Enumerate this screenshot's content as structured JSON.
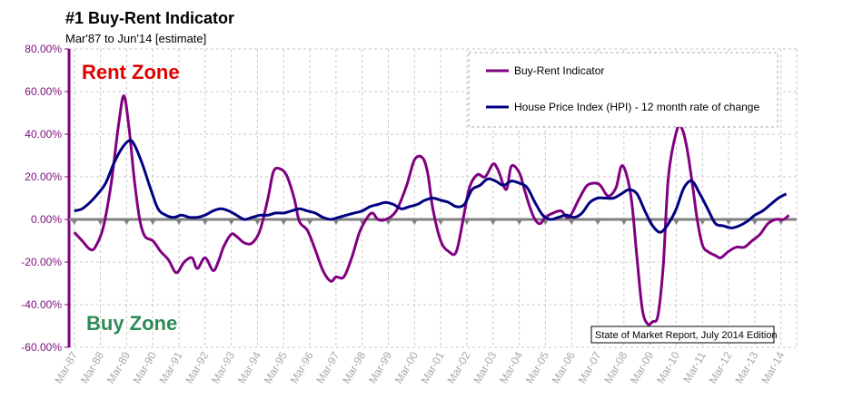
{
  "chart_data": {
    "type": "line",
    "title": "#1 Buy-Rent Indicator",
    "subtitle": "Mar'87 to Jun'14 [estimate]",
    "xlabel": "",
    "ylabel": "",
    "ylim": [
      -60,
      80
    ],
    "y_ticks": [
      "80.00%",
      "60.00%",
      "40.00%",
      "20.00%",
      "0.00%",
      "-20.00%",
      "-40.00%",
      "-60.00%"
    ],
    "x_ticks": [
      "Mar-87",
      "Mar-88",
      "Mar-89",
      "Mar-90",
      "Mar-91",
      "Mar-92",
      "Mar-93",
      "Mar-94",
      "Mar-95",
      "Mar-96",
      "Mar-97",
      "Mar-98",
      "Mar-99",
      "Mar-00",
      "Mar-01",
      "Mar-02",
      "Mar-03",
      "Mar-04",
      "Mar-05",
      "Mar-06",
      "Mar-07",
      "Mar-08",
      "Mar-09",
      "Mar-10",
      "Mar-11",
      "Mar-12",
      "Mar-13",
      "Mar-14"
    ],
    "grid": true,
    "legend": "top-right",
    "annotations": {
      "rent_zone": "Rent Zone",
      "buy_zone": "Buy Zone",
      "credit": "State of Market Report, July 2014 Edition"
    },
    "series": [
      {
        "name": "Buy-Rent Indicator",
        "color": "#800080",
        "x": [
          1987.2,
          1987.5,
          1987.8,
          1988.0,
          1988.3,
          1988.6,
          1988.9,
          1989.1,
          1989.3,
          1989.5,
          1989.7,
          1989.9,
          1990.2,
          1990.5,
          1990.8,
          1991.1,
          1991.4,
          1991.7,
          1991.9,
          1992.2,
          1992.5,
          1992.7,
          1992.9,
          1993.2,
          1993.4,
          1993.7,
          1994.0,
          1994.3,
          1994.6,
          1994.8,
          1995.0,
          1995.3,
          1995.6,
          1995.8,
          1996.1,
          1996.4,
          1996.7,
          1997.0,
          1997.2,
          1997.5,
          1997.8,
          1998.1,
          1998.4,
          1998.6,
          1998.8,
          1999.1,
          1999.5,
          1999.9,
          2000.2,
          2000.5,
          2000.7,
          2000.9,
          2001.2,
          2001.5,
          2001.8,
          2002.1,
          2002.3,
          2002.6,
          2002.9,
          2003.2,
          2003.4,
          2003.7,
          2003.9,
          2004.2,
          2004.4,
          2004.6,
          2004.8,
          2005.0,
          2005.2,
          2005.5,
          2005.8,
          2006.1,
          2006.5,
          2006.8,
          2007.1,
          2007.3,
          2007.6,
          2007.9,
          2008.1,
          2008.3,
          2008.5,
          2008.7,
          2008.9,
          2009.1,
          2009.3,
          2009.5,
          2009.7,
          2009.9,
          2010.2,
          2010.4,
          2010.6,
          2010.8,
          2011.0,
          2011.2,
          2011.4,
          2011.7,
          2011.9,
          2012.2,
          2012.5,
          2012.8,
          2013.1,
          2013.4,
          2013.7,
          2014.0,
          2014.3,
          2014.5
        ],
        "values": [
          -6,
          -10,
          -14,
          -13,
          -4,
          16,
          45,
          58,
          42,
          18,
          0,
          -8,
          -10,
          -15,
          -19,
          -25,
          -20,
          -18,
          -23,
          -18,
          -24,
          -20,
          -13,
          -7,
          -8,
          -11,
          -11,
          -5,
          10,
          22,
          24,
          21,
          10,
          -1,
          -5,
          -14,
          -24,
          -29,
          -27,
          -27,
          -18,
          -6,
          1,
          3,
          0,
          0,
          4,
          16,
          28,
          29,
          22,
          5,
          -10,
          -15,
          -15,
          3,
          15,
          21,
          20,
          26,
          23,
          14,
          25,
          22,
          14,
          6,
          0,
          -2,
          1,
          3,
          4,
          1,
          10,
          16,
          17,
          16,
          11,
          15,
          25,
          21,
          8,
          -18,
          -42,
          -49,
          -48,
          -45,
          -22,
          20,
          41,
          43,
          34,
          18,
          0,
          -12,
          -15,
          -17,
          -18,
          -15,
          -13,
          -13,
          -10,
          -7,
          -2,
          0,
          0,
          2
        ]
      },
      {
        "name": "House Price Index (HPI) - 12 month rate of change",
        "color": "#000080",
        "x": [
          1987.2,
          1987.5,
          1987.8,
          1988.1,
          1988.4,
          1988.7,
          1989.0,
          1989.3,
          1989.5,
          1989.8,
          1990.1,
          1990.4,
          1990.7,
          1991.0,
          1991.3,
          1991.6,
          1991.9,
          1992.2,
          1992.5,
          1992.8,
          1993.1,
          1993.4,
          1993.7,
          1994.0,
          1994.3,
          1994.6,
          1994.9,
          1995.2,
          1995.5,
          1995.8,
          1996.1,
          1996.4,
          1996.7,
          1997.0,
          1997.3,
          1997.6,
          1997.9,
          1998.2,
          1998.5,
          1998.8,
          1999.1,
          1999.4,
          1999.7,
          2000.0,
          2000.3,
          2000.6,
          2000.9,
          2001.2,
          2001.5,
          2001.8,
          2002.1,
          2002.4,
          2002.7,
          2003.0,
          2003.3,
          2003.6,
          2003.9,
          2004.2,
          2004.5,
          2004.8,
          2005.1,
          2005.4,
          2005.7,
          2006.0,
          2006.3,
          2006.6,
          2006.9,
          2007.2,
          2007.5,
          2007.8,
          2008.1,
          2008.4,
          2008.7,
          2009.0,
          2009.3,
          2009.6,
          2009.9,
          2010.2,
          2010.5,
          2010.8,
          2011.1,
          2011.4,
          2011.7,
          2012.0,
          2012.3,
          2012.6,
          2012.9,
          2013.2,
          2013.5,
          2013.8,
          2014.1,
          2014.4
        ],
        "values": [
          4,
          5,
          8,
          12,
          17,
          26,
          33,
          37,
          35,
          26,
          15,
          5,
          2,
          1,
          2,
          1,
          1,
          2,
          4,
          5,
          4,
          2,
          0,
          1,
          2,
          2,
          3,
          3,
          4,
          5,
          4,
          3,
          1,
          0,
          1,
          2,
          3,
          4,
          6,
          7,
          8,
          7,
          5,
          6,
          7,
          9,
          10,
          9,
          8,
          6,
          7,
          14,
          16,
          19,
          18,
          16,
          18,
          17,
          15,
          8,
          2,
          0,
          1,
          2,
          1,
          3,
          8,
          10,
          10,
          10,
          12,
          14,
          12,
          4,
          -3,
          -6,
          -2,
          5,
          15,
          18,
          12,
          5,
          -2,
          -3,
          -4,
          -3,
          -1,
          2,
          4,
          7,
          10,
          12
        ]
      }
    ]
  }
}
